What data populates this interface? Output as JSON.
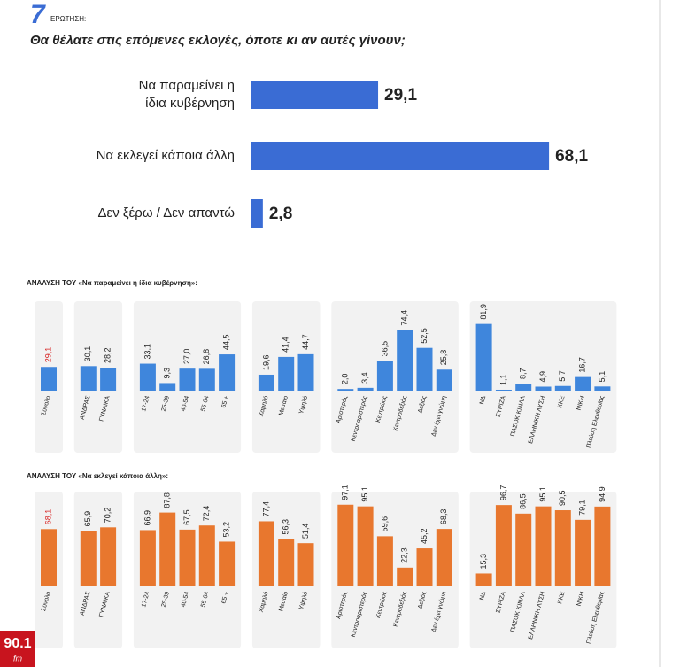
{
  "header": {
    "number": "7",
    "label": "ΕΡΩΤΗΣΗ:"
  },
  "logo": {
    "text": "90.1",
    "sub": "fm"
  },
  "chart_data": [
    {
      "type": "bar",
      "orientation": "horizontal",
      "title": "Θα θέλατε στις επόμενες εκλογές, όποτε κι αν αυτές γίνουν;",
      "categories": [
        "Να παραμείνει η ίδια κυβέρνηση",
        "Να εκλεγεί κάποια άλλη",
        "Δεν ξέρω / Δεν απαντώ"
      ],
      "values": [
        29.1,
        68.1,
        2.8
      ],
      "value_labels": [
        "29,1",
        "68,1",
        "2,8"
      ],
      "color": "#3a6cd4"
    },
    {
      "type": "bar",
      "title": "ΑΝΑΛΥΣΗ ΤΟΥ «Να παραμείνει η ίδια κυβέρνηση»:",
      "categories": [
        "Σύνολο",
        "ΑΝΔΡΑΣ",
        "ΓΥΝΑΙΚΑ",
        "17-24",
        "25-39",
        "40-54",
        "55-64",
        "65 +",
        "Χαμηλό",
        "Μεσαίο",
        "Υψηλό",
        "Αριστερός",
        "Κεντροαριστερός",
        "Κεντρώος",
        "Κεντροδεξιός",
        "Δεξιός",
        "Δεν έχει γνώμη",
        "ΝΔ",
        "ΣΥΡΙΖΑ",
        "ΠΑΣΟΚ ΚΙΝΑΛ",
        "ΕΛΛΗΝΙΚΗ ΛΥΣΗ",
        "ΚΚΕ",
        "ΝΙΚΗ",
        "Πλεύση Ελευθερίας"
      ],
      "values": [
        29.1,
        30.1,
        28.2,
        33.1,
        9.3,
        27.0,
        26.8,
        44.5,
        19.6,
        41.4,
        44.7,
        2.0,
        3.4,
        36.5,
        74.4,
        52.5,
        25.8,
        81.9,
        1.1,
        8.7,
        4.9,
        5.7,
        16.7,
        5.1
      ],
      "value_labels": [
        "29,1",
        "30,1",
        "28,2",
        "33,1",
        "9,3",
        "27,0",
        "26,8",
        "44,5",
        "19,6",
        "41,4",
        "44,7",
        "2,0",
        "3,4",
        "36,5",
        "74,4",
        "52,5",
        "25,8",
        "81,9",
        "1,1",
        "8,7",
        "4,9",
        "5,7",
        "16,7",
        "5,1"
      ],
      "color": "#3f86dc",
      "total_label_color": "#d62020"
    },
    {
      "type": "bar",
      "title": "ΑΝΑΛΥΣΗ ΤΟΥ «Να εκλεγεί κάποια άλλη»:",
      "categories": [
        "Σύνολο",
        "ΑΝΔΡΑΣ",
        "ΓΥΝΑΙΚΑ",
        "17-24",
        "25-39",
        "40-54",
        "55-64",
        "65 +",
        "Χαμηλό",
        "Μεσαίο",
        "Υψηλό",
        "Αριστερός",
        "Κεντροαριστερός",
        "Κεντρώος",
        "Κεντροδεξιός",
        "Δεξιός",
        "Δεν έχει γνώμη",
        "ΝΔ",
        "ΣΥΡΙΖΑ",
        "ΠΑΣΟΚ ΚΙΝΑΛ",
        "ΕΛΛΗΝΙΚΗ ΛΥΣΗ",
        "ΚΚΕ",
        "ΝΙΚΗ",
        "Πλεύση Ελευθερίας"
      ],
      "values": [
        68.1,
        65.9,
        70.2,
        66.9,
        87.8,
        67.5,
        72.4,
        53.2,
        77.4,
        56.3,
        51.4,
        97.1,
        95.1,
        59.6,
        22.3,
        45.2,
        68.3,
        15.3,
        96.7,
        86.5,
        95.1,
        90.5,
        79.1,
        94.9
      ],
      "value_labels": [
        "68,1",
        "65,9",
        "70,2",
        "66,9",
        "87,8",
        "67,5",
        "72,4",
        "53,2",
        "77,4",
        "56,3",
        "51,4",
        "97,1",
        "95,1",
        "59,6",
        "22,3",
        "45,2",
        "68,3",
        "15,3",
        "96,7",
        "86,5",
        "95,1",
        "90,5",
        "79,1",
        "94,9"
      ],
      "color": "#e8772e",
      "total_label_color": "#d62020"
    }
  ]
}
